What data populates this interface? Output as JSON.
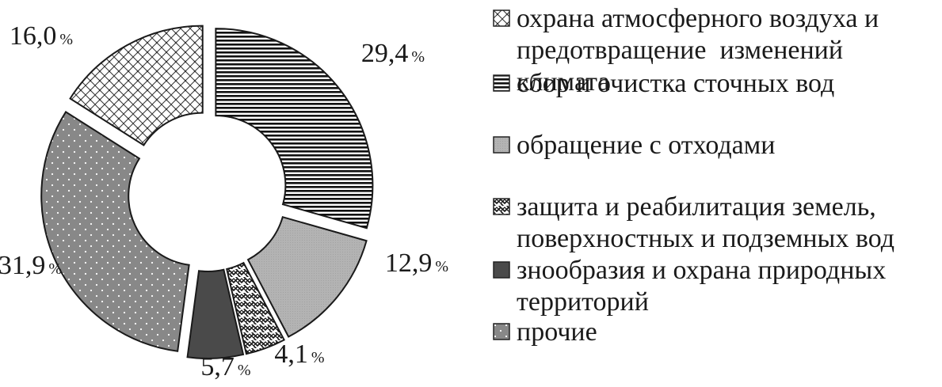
{
  "chart_data": {
    "type": "pie",
    "variant": "exploded-donut",
    "percent_sign": "%",
    "slices": [
      {
        "label": "сбор и очистка сточных вод",
        "value": 29.4,
        "value_text": "29,4",
        "pattern": "hlines"
      },
      {
        "label": "обращение с отходами",
        "value": 12.9,
        "value_text": "12,9",
        "pattern": "gray-fine"
      },
      {
        "label": "защита и реабилитация земель, поверхностных и подземных вод",
        "value": 4.1,
        "value_text": "4,1",
        "pattern": "zigzag"
      },
      {
        "label": "знообразия и охрана природных территорий",
        "value": 5.7,
        "value_text": "5,7",
        "pattern": "dark-solid"
      },
      {
        "label": "прочие",
        "value": 31.9,
        "value_text": "31,9",
        "pattern": "gray-dots"
      },
      {
        "label": "охрана атмосферного воздуха и предотвращение  изменений климата",
        "value": 16.0,
        "value_text": "16,0",
        "pattern": "lattice"
      }
    ],
    "legend": {
      "placement": "right",
      "items": [
        {
          "label": "охрана атмосферного воздуха и\nпредотвращение  изменений климата",
          "pattern": "lattice"
        },
        {
          "label": "сбор и очистка сточных вод",
          "pattern": "hlines"
        },
        {
          "label": "обращение с отходами",
          "pattern": "gray-fine"
        },
        {
          "label": "защита и реабилитация земель,\nповерхностных и подземных вод",
          "pattern": "zigzag"
        },
        {
          "label": "знообразия и охрана природных\nтерриторий",
          "pattern": "dark-solid"
        },
        {
          "label": "прочие",
          "pattern": "gray-dots"
        }
      ]
    }
  }
}
